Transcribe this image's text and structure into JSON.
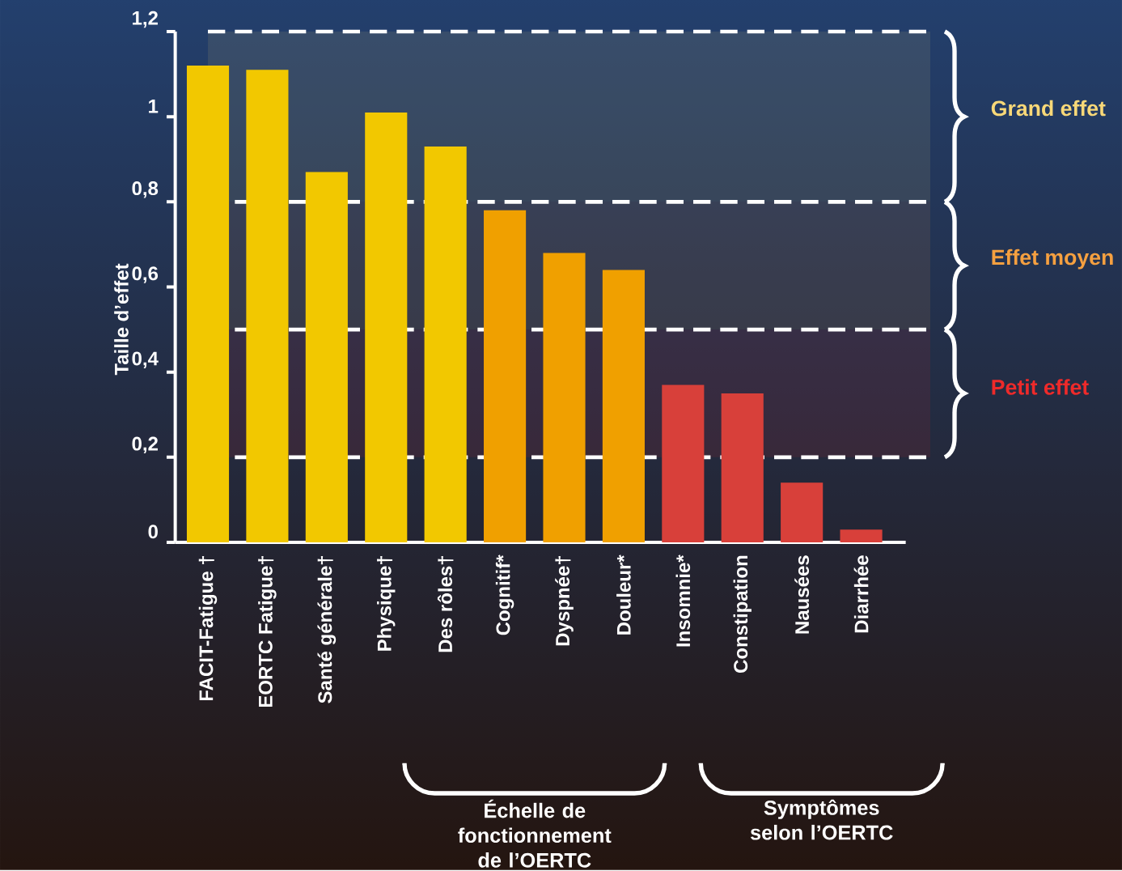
{
  "chart_data": {
    "type": "bar",
    "ylabel": "Taille d’effet",
    "categories": [
      "FACIT-Fatigue †",
      "EORTC Fatigue†",
      "Santé générale†",
      "Physique†",
      "Des rôles†",
      "Cognitif*",
      "Dyspnée†",
      "Douleur*",
      "Insomnie*",
      "Constipation",
      "Nausées",
      "Diarrhée"
    ],
    "values": [
      1.12,
      1.11,
      0.87,
      1.01,
      0.93,
      0.78,
      0.68,
      0.64,
      0.37,
      0.35,
      0.14,
      0.03
    ],
    "colors": [
      "#f2c800",
      "#f2c800",
      "#f2c800",
      "#f2c800",
      "#f2c800",
      "#f0a000",
      "#f0a000",
      "#f0a000",
      "#d8403a",
      "#d8403a",
      "#d8403a",
      "#d8403a"
    ],
    "ylim": [
      0,
      1.2
    ],
    "yticks": [
      {
        "value": 0,
        "label": "0"
      },
      {
        "value": 0.2,
        "label": "0,2"
      },
      {
        "value": 0.4,
        "label": "0,4"
      },
      {
        "value": 0.6,
        "label": "0,6"
      },
      {
        "value": 0.8,
        "label": "0,8"
      },
      {
        "value": 1,
        "label": "1"
      },
      {
        "value": 1.2,
        "label": "1,2"
      }
    ],
    "bands": [
      {
        "axis": "y",
        "from": 0.8,
        "to": 1.2,
        "label": "Grand effet",
        "color": "#f8d878"
      },
      {
        "axis": "y",
        "from": 0.5,
        "to": 0.8,
        "label": "Effet moyen",
        "color": "#f5a040"
      },
      {
        "axis": "y",
        "from": 0.2,
        "to": 0.5,
        "label": "Petit effet",
        "color": "#ee2a2a"
      }
    ],
    "annotations": [
      "Échelle de fonctionnement de l’OERTC",
      "Symptômes selon l’OERTC"
    ]
  }
}
